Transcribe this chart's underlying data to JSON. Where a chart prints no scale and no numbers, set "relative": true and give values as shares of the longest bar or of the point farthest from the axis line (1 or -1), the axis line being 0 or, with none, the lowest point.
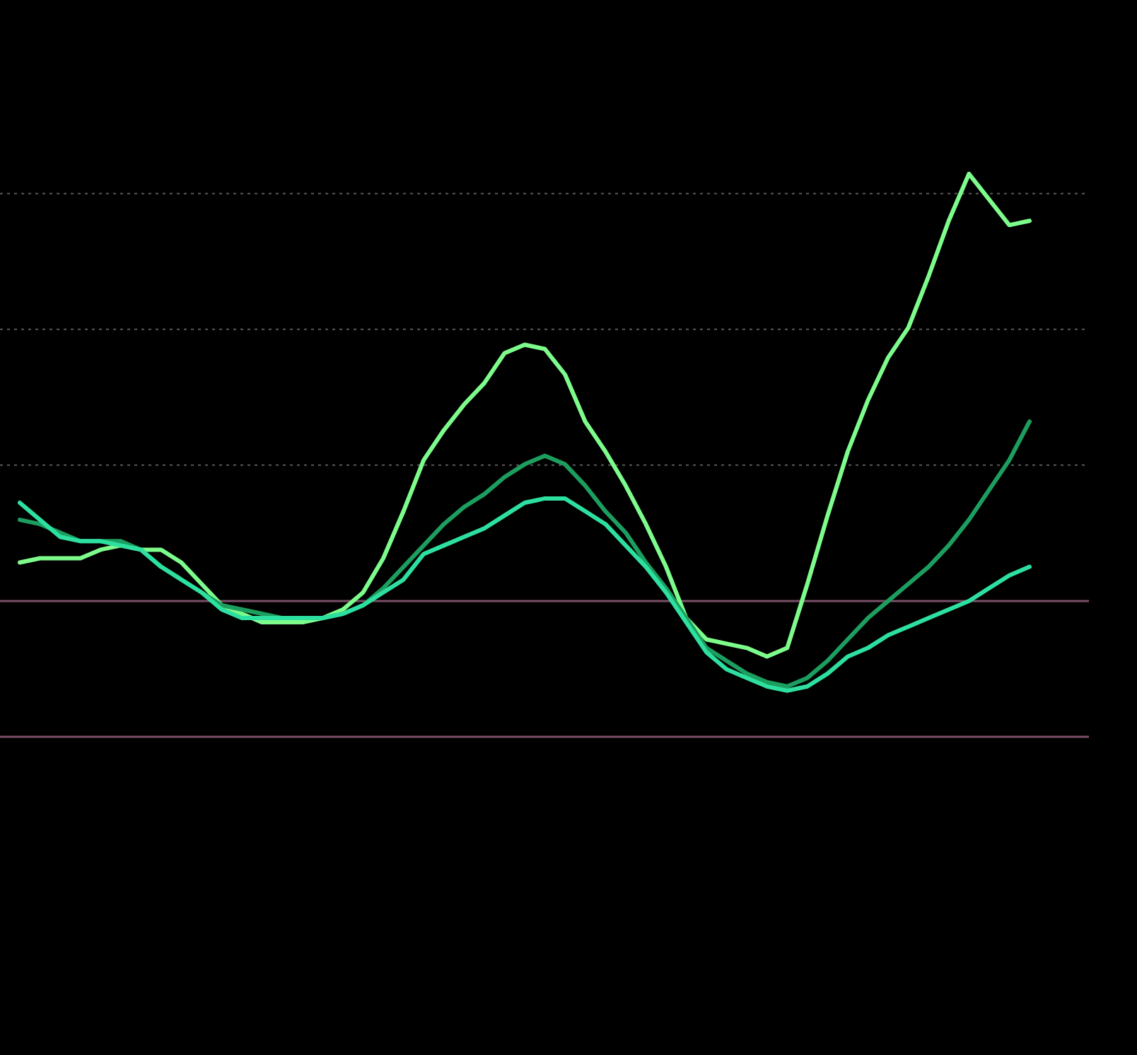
{
  "chart_data": {
    "type": "line",
    "relative": true,
    "legend": false,
    "marker": "none",
    "line_style": "solid",
    "categories": [
      null,
      null,
      null,
      null,
      null,
      null,
      null,
      null,
      null,
      null,
      null,
      null,
      null,
      null,
      null,
      null,
      null,
      null,
      null,
      null,
      null,
      null,
      null,
      null,
      null,
      null,
      null,
      null,
      null,
      null,
      null,
      null,
      null,
      null,
      null,
      null,
      null,
      null,
      null,
      null,
      null,
      null,
      null,
      null,
      null,
      null,
      null,
      null,
      null,
      null,
      null
    ],
    "ref_lines": [
      {
        "axis": "y",
        "value": 0,
        "color": "#7b5068",
        "line_style": "solid"
      },
      {
        "axis": "y",
        "value": 0.318,
        "color": "#5a5a5a",
        "line_style": "dotted"
      },
      {
        "axis": "y",
        "value": 0.636,
        "color": "#5a5a5a",
        "line_style": "dotted"
      },
      {
        "axis": "y",
        "value": 0.954,
        "color": "#5a5a5a",
        "line_style": "dotted"
      }
    ],
    "series": [
      {
        "color": "#2de0a0",
        "values": [
          0.23,
          0.19,
          0.15,
          0.14,
          0.14,
          0.13,
          0.12,
          0.08,
          0.05,
          0.02,
          -0.02,
          -0.04,
          -0.04,
          -0.04,
          -0.04,
          -0.04,
          -0.03,
          -0.01,
          0.02,
          0.05,
          0.11,
          0.13,
          0.15,
          0.17,
          0.2,
          0.23,
          0.24,
          0.24,
          0.21,
          0.18,
          0.13,
          0.08,
          0.02,
          -0.05,
          -0.12,
          -0.16,
          -0.18,
          -0.2,
          -0.21,
          -0.2,
          -0.17,
          -0.13,
          -0.11,
          -0.08,
          -0.06,
          -0.04,
          -0.02,
          0,
          0.03,
          0.06,
          0.08
        ]
      },
      {
        "color": "#1c9e5f",
        "values": [
          0.19,
          0.18,
          0.16,
          0.14,
          0.14,
          0.14,
          0.12,
          0.08,
          0.05,
          0.02,
          -0.01,
          -0.02,
          -0.03,
          -0.04,
          -0.04,
          -0.04,
          -0.03,
          -0.01,
          0.03,
          0.08,
          0.13,
          0.18,
          0.22,
          0.25,
          0.29,
          0.32,
          0.34,
          0.32,
          0.27,
          0.21,
          0.16,
          0.09,
          0.03,
          -0.04,
          -0.11,
          -0.14,
          -0.17,
          -0.19,
          -0.2,
          -0.18,
          -0.14,
          -0.09,
          -0.04,
          0,
          0.04,
          0.08,
          0.13,
          0.19,
          0.26,
          0.33,
          0.42
        ]
      },
      {
        "color": "#7dfc8c",
        "values": [
          0.09,
          0.1,
          0.1,
          0.1,
          0.12,
          0.13,
          0.12,
          0.12,
          0.09,
          0.04,
          -0.01,
          -0.03,
          -0.05,
          -0.05,
          -0.05,
          -0.04,
          -0.02,
          0.02,
          0.1,
          0.21,
          0.33,
          0.4,
          0.46,
          0.51,
          0.58,
          0.6,
          0.59,
          0.53,
          0.42,
          0.35,
          0.27,
          0.18,
          0.08,
          -0.04,
          -0.09,
          -0.1,
          -0.11,
          -0.13,
          -0.11,
          0.04,
          0.2,
          0.35,
          0.47,
          0.57,
          0.64,
          0.76,
          0.89,
          1,
          0.94,
          0.88,
          0.89
        ]
      }
    ]
  }
}
